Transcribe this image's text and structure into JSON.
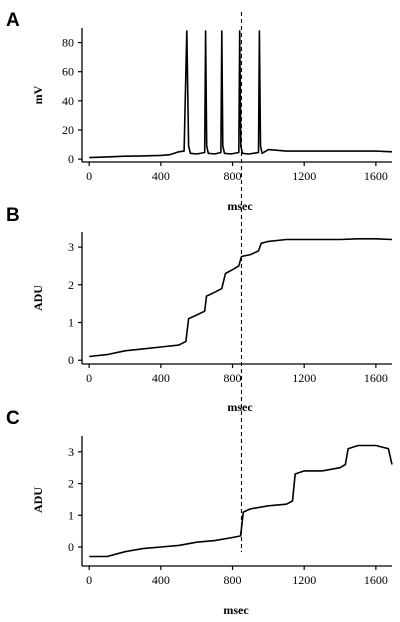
{
  "chart_data": [
    {
      "panel": "A",
      "type": "line",
      "title": "",
      "xlabel": "msec",
      "ylabel": "mV",
      "xlim": [
        -40,
        1690
      ],
      "ylim": [
        -2,
        90
      ],
      "xticks": [
        0,
        400,
        800,
        1200,
        1600
      ],
      "yticks": [
        0,
        20,
        40,
        60,
        80
      ],
      "x_tick_labels": [
        "0",
        "400",
        "800",
        "1200",
        "1600"
      ],
      "y_tick_labels": [
        "0",
        "20",
        "40",
        "60",
        "80"
      ],
      "grid": false,
      "series": [
        {
          "x": [
            0,
            100,
            200,
            300,
            400,
            450,
            500,
            530,
            545,
            555,
            565,
            600,
            645,
            650,
            656,
            665,
            700,
            735,
            740,
            746,
            755,
            790,
            835,
            840,
            846,
            855,
            890,
            945,
            950,
            956,
            965,
            1000,
            1100,
            1300,
            1500,
            1600,
            1690
          ],
          "y": [
            1,
            1.5,
            2,
            2.2,
            2.5,
            3,
            5,
            5.5,
            88,
            9,
            4,
            3.5,
            4.5,
            88,
            9,
            4,
            3.5,
            4.5,
            88,
            9,
            4,
            3.5,
            4.5,
            88,
            9,
            4,
            3.5,
            4.5,
            88,
            9,
            4,
            6.5,
            5.5,
            5.5,
            5.5,
            5.5,
            5
          ]
        }
      ]
    },
    {
      "panel": "B",
      "type": "line",
      "title": "",
      "xlabel": "msec",
      "ylabel": "ADU",
      "xlim": [
        -40,
        1690
      ],
      "ylim": [
        -0.1,
        3.4
      ],
      "xticks": [
        0,
        400,
        800,
        1200,
        1600
      ],
      "yticks": [
        0,
        1,
        2,
        3
      ],
      "x_tick_labels": [
        "0",
        "400",
        "800",
        "1200",
        "1600"
      ],
      "y_tick_labels": [
        "0",
        "1",
        "2",
        "3"
      ],
      "grid": false,
      "series": [
        {
          "x": [
            0,
            100,
            200,
            300,
            400,
            500,
            540,
            555,
            600,
            645,
            655,
            700,
            740,
            760,
            800,
            835,
            850,
            900,
            945,
            960,
            1000,
            1100,
            1200,
            1300,
            1400,
            1500,
            1600,
            1690
          ],
          "y": [
            0.1,
            0.15,
            0.25,
            0.3,
            0.35,
            0.4,
            0.5,
            1.1,
            1.2,
            1.3,
            1.7,
            1.8,
            1.9,
            2.3,
            2.4,
            2.5,
            2.75,
            2.8,
            2.9,
            3.1,
            3.15,
            3.2,
            3.2,
            3.2,
            3.2,
            3.22,
            3.22,
            3.2
          ]
        }
      ]
    },
    {
      "panel": "C",
      "type": "line",
      "title": "",
      "xlabel": "msec",
      "ylabel": "ADU",
      "xlim": [
        -40,
        1690
      ],
      "ylim": [
        -0.6,
        3.5
      ],
      "xticks": [
        0,
        400,
        800,
        1200,
        1600
      ],
      "yticks": [
        0,
        1,
        2,
        3
      ],
      "x_tick_labels": [
        "0",
        "400",
        "800",
        "1200",
        "1600"
      ],
      "y_tick_labels": [
        "0",
        "1",
        "2",
        "3"
      ],
      "grid": false,
      "series": [
        {
          "x": [
            0,
            100,
            200,
            300,
            400,
            500,
            600,
            700,
            800,
            845,
            860,
            900,
            1000,
            1100,
            1135,
            1150,
            1200,
            1300,
            1400,
            1430,
            1445,
            1500,
            1600,
            1670,
            1690
          ],
          "y": [
            -0.3,
            -0.3,
            -0.15,
            -0.05,
            0,
            0.05,
            0.15,
            0.2,
            0.3,
            0.35,
            1.1,
            1.2,
            1.3,
            1.35,
            1.45,
            2.3,
            2.4,
            2.4,
            2.5,
            2.6,
            3.1,
            3.2,
            3.2,
            3.1,
            2.6
          ]
        }
      ]
    }
  ],
  "marker": {
    "x": 850,
    "style": "dashed"
  }
}
